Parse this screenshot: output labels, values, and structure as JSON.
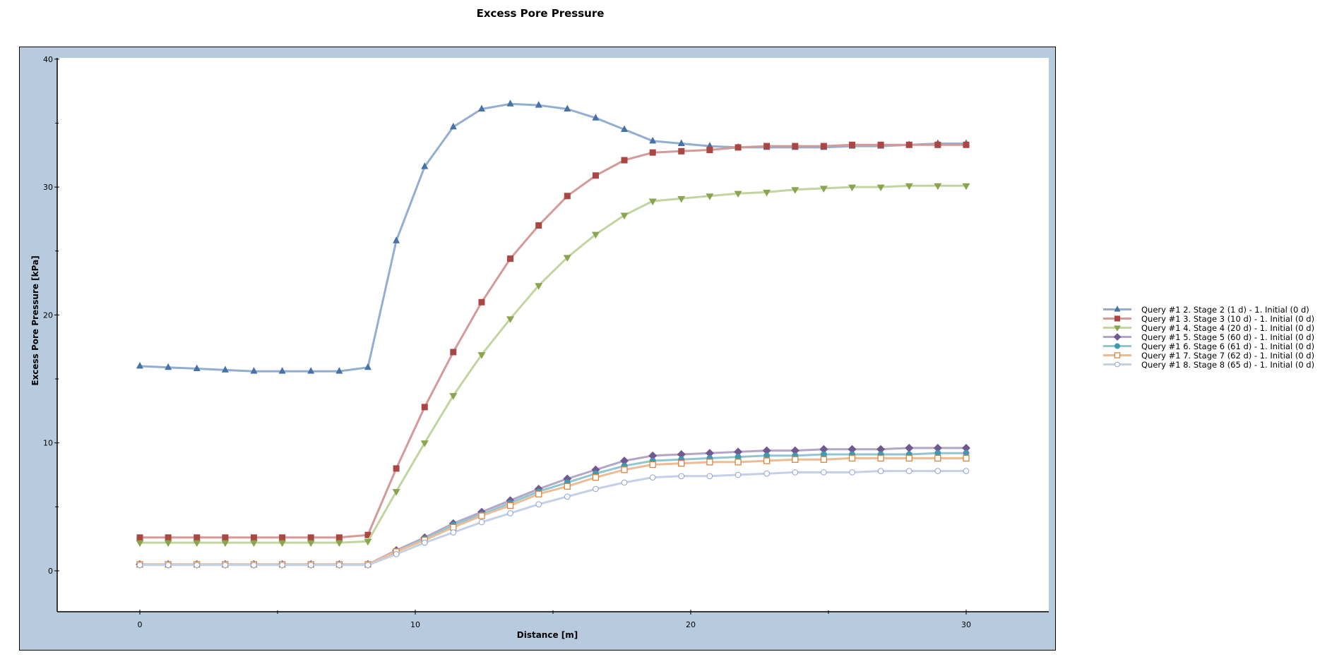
{
  "chart_data": {
    "type": "line",
    "title": "Excess Pore Pressure",
    "xlabel": "Distance [m]",
    "ylabel": "Excess Pore Pressure [kPa]",
    "xlim": [
      -3,
      33
    ],
    "ylim": [
      -3.2,
      40.1
    ],
    "xticks": [
      0,
      10,
      20,
      30
    ],
    "xminor": [
      5,
      15,
      25
    ],
    "yticks": [
      0,
      10,
      20,
      30,
      40
    ],
    "yminor": [
      5,
      15,
      25,
      35
    ],
    "grid": false,
    "legend_position": "right",
    "x": [
      0,
      1.03,
      2.07,
      3.1,
      4.14,
      5.17,
      6.21,
      7.24,
      8.28,
      9.31,
      10.34,
      11.38,
      12.41,
      13.45,
      14.48,
      15.52,
      16.55,
      17.59,
      18.62,
      19.66,
      20.69,
      21.72,
      22.76,
      23.79,
      24.83,
      25.86,
      26.9,
      27.93,
      28.97,
      30
    ],
    "series": [
      {
        "name": "Query #1 2. Stage 2 (1 d) - 1. Initial (0 d)",
        "marker": "triangle-up",
        "marker_color": "#4572A7",
        "line_color": "#93AED0",
        "values": [
          16.0,
          15.9,
          15.8,
          15.7,
          15.6,
          15.6,
          15.6,
          15.6,
          15.9,
          25.8,
          31.6,
          34.7,
          36.1,
          36.5,
          36.4,
          36.1,
          35.4,
          34.5,
          33.6,
          33.4,
          33.2,
          33.1,
          33.1,
          33.1,
          33.1,
          33.2,
          33.2,
          33.3,
          33.4,
          33.4
        ]
      },
      {
        "name": "Query #1 3. Stage 3 (10 d) - 1. Initial (0 d)",
        "marker": "square",
        "marker_color": "#AA4643",
        "line_color": "#D39A98",
        "values": [
          2.6,
          2.6,
          2.6,
          2.6,
          2.6,
          2.6,
          2.6,
          2.6,
          2.8,
          8.0,
          12.8,
          17.1,
          21.0,
          24.4,
          27.0,
          29.3,
          30.9,
          32.1,
          32.7,
          32.8,
          32.9,
          33.1,
          33.2,
          33.2,
          33.2,
          33.3,
          33.3,
          33.3,
          33.3,
          33.3
        ]
      },
      {
        "name": "Query #1 4. Stage 4 (20 d) - 1. Initial (0 d)",
        "marker": "triangle-down",
        "marker_color": "#89A54E",
        "line_color": "#C2D4A0",
        "values": [
          2.2,
          2.2,
          2.2,
          2.2,
          2.2,
          2.2,
          2.2,
          2.2,
          2.3,
          6.2,
          10.0,
          13.7,
          16.9,
          19.7,
          22.3,
          24.5,
          26.3,
          27.8,
          28.9,
          29.1,
          29.3,
          29.5,
          29.6,
          29.8,
          29.9,
          30.0,
          30.0,
          30.1,
          30.1,
          30.1
        ]
      },
      {
        "name": "Query #1 5. Stage 5 (60 d) - 1. Initial (0 d)",
        "marker": "diamond",
        "marker_color": "#71588F",
        "line_color": "#B3A6C6",
        "values": [
          0.5,
          0.5,
          0.5,
          0.5,
          0.5,
          0.5,
          0.5,
          0.5,
          0.5,
          1.6,
          2.6,
          3.7,
          4.6,
          5.5,
          6.4,
          7.2,
          7.9,
          8.6,
          9.0,
          9.1,
          9.2,
          9.3,
          9.4,
          9.4,
          9.5,
          9.5,
          9.5,
          9.6,
          9.6,
          9.6
        ]
      },
      {
        "name": "Query #1 6. Stage 6 (61 d) - 1. Initial (0 d)",
        "marker": "circle",
        "marker_color": "#4198AF",
        "line_color": "#92C5D3",
        "values": [
          0.5,
          0.5,
          0.5,
          0.5,
          0.5,
          0.5,
          0.5,
          0.5,
          0.5,
          1.5,
          2.5,
          3.6,
          4.4,
          5.3,
          6.2,
          6.9,
          7.6,
          8.2,
          8.6,
          8.7,
          8.8,
          8.9,
          9.0,
          9.0,
          9.1,
          9.1,
          9.1,
          9.1,
          9.2,
          9.2
        ]
      },
      {
        "name": "Query #1 7. Stage 7 (62 d) - 1. Initial (0 d)",
        "marker": "square-open",
        "marker_color": "#DB843D",
        "line_color": "#EDBC94",
        "values": [
          0.5,
          0.5,
          0.5,
          0.5,
          0.5,
          0.5,
          0.5,
          0.5,
          0.5,
          1.5,
          2.4,
          3.4,
          4.3,
          5.1,
          6.0,
          6.6,
          7.3,
          7.9,
          8.3,
          8.4,
          8.5,
          8.5,
          8.6,
          8.7,
          8.7,
          8.8,
          8.8,
          8.8,
          8.8,
          8.8
        ]
      },
      {
        "name": "Query #1 8. Stage 8 (65 d) - 1. Initial (0 d)",
        "marker": "circle-open",
        "marker_color": "#8EA4CF",
        "line_color": "#C4CFE8",
        "values": [
          0.45,
          0.45,
          0.45,
          0.45,
          0.45,
          0.45,
          0.45,
          0.45,
          0.45,
          1.3,
          2.2,
          3.0,
          3.8,
          4.5,
          5.2,
          5.8,
          6.4,
          6.9,
          7.3,
          7.4,
          7.4,
          7.5,
          7.6,
          7.7,
          7.7,
          7.7,
          7.8,
          7.8,
          7.8,
          7.8
        ]
      }
    ]
  },
  "colors": {
    "frame_background": "#B8CADE",
    "plot_background": "#FFFFFF",
    "axis": "#000000"
  }
}
